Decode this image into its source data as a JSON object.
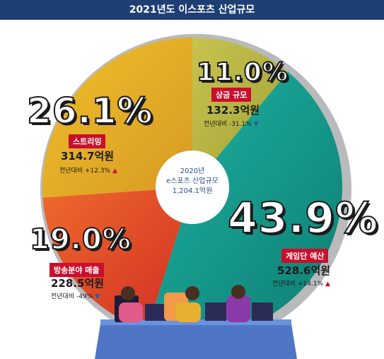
{
  "header": {
    "title": "2021년도 이스포츠 산업규모"
  },
  "center": {
    "year": "2020년",
    "label": "e스포츠 산업규모",
    "total": "1,204.1억원"
  },
  "chart_data": {
    "type": "pie",
    "title": "2021년도 이스포츠 산업규모",
    "slices": [
      {
        "name": "상금 규모",
        "percent": 11.0,
        "percent_label": "11.0%",
        "amount": "132.3억원",
        "change": "전년대비 -31.1%",
        "direction": "down",
        "color": "#b5b03c"
      },
      {
        "name": "게임단 예산",
        "percent": 43.9,
        "percent_label": "43.9%",
        "amount": "528.6억원",
        "change": "전년대비 +14.1%",
        "direction": "up",
        "color": "#169a8c"
      },
      {
        "name": "방송분야 매출",
        "percent": 19.0,
        "percent_label": "19.0%",
        "amount": "228.5억원",
        "change": "전년대비 -49%",
        "direction": "down",
        "color": "#e04a2a"
      },
      {
        "name": "스트리밍",
        "percent": 26.1,
        "percent_label": "26.1%",
        "amount": "314.7억원",
        "change": "전년대비 +12.3%",
        "direction": "up",
        "color": "#e3a826"
      }
    ]
  }
}
